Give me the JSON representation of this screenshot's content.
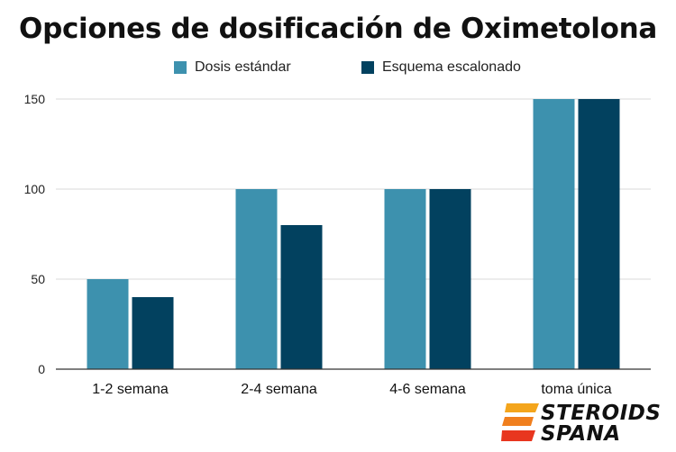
{
  "chart_data": {
    "type": "bar",
    "title": "Opciones de dosificación de Oximetolona",
    "categories": [
      "1-2 semana",
      "2-4 semana",
      "4-6 semana",
      "toma única"
    ],
    "series": [
      {
        "name": "Dosis estándar",
        "values": [
          50,
          100,
          100,
          150
        ],
        "color": "#3d91ae"
      },
      {
        "name": "Esquema escalonado",
        "values": [
          40,
          80,
          100,
          150
        ],
        "color": "#02415f"
      }
    ],
    "yticks": [
      0,
      50,
      100,
      150
    ],
    "ylim": [
      0,
      150
    ],
    "xlabel": "",
    "ylabel": "",
    "grid": true,
    "legend": "top-center"
  },
  "logo": {
    "line1": "STEROIDS",
    "line2": "SPANA",
    "colors": {
      "accent_top": "#f4a51c",
      "accent_bottom": "#e8361f"
    }
  }
}
